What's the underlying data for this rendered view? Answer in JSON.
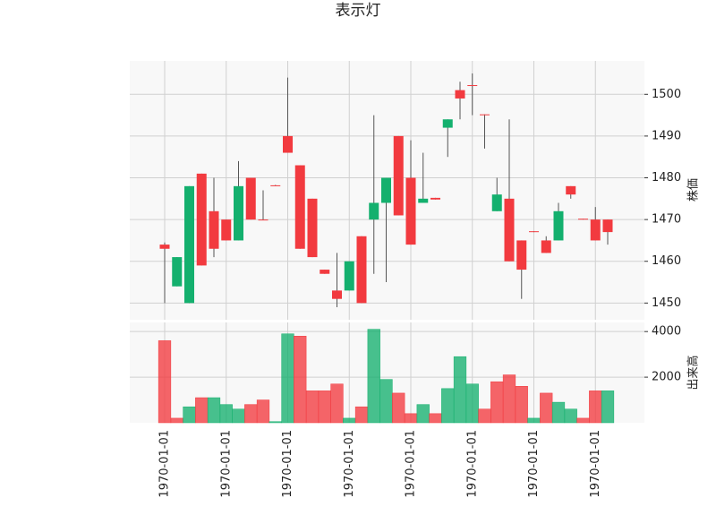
{
  "chart_data": {
    "type": "candlestick",
    "title": "表示灯",
    "categories": [
      "1970-01-01",
      null,
      null,
      null,
      null,
      "1970-01-01",
      null,
      null,
      null,
      null,
      "1970-01-01",
      null,
      null,
      null,
      null,
      "1970-01-01",
      null,
      null,
      null,
      null,
      "1970-01-01",
      null,
      null,
      null,
      null,
      "1970-01-01",
      null,
      null,
      null,
      null,
      "1970-01-01",
      null,
      null,
      null,
      null,
      "1970-01-01",
      null
    ],
    "open": [
      1464,
      1454,
      1450,
      1481,
      1472,
      1470,
      1465,
      1480,
      1470,
      1478.2,
      1490,
      1483,
      1475,
      1458,
      1453,
      1453,
      1466,
      1470,
      1474,
      1490,
      1480,
      1474,
      1475.2,
      1492,
      1501,
      1502.2,
      1495.2,
      1472,
      1475,
      1465,
      1467.2,
      1465,
      1465,
      1478,
      1470.2,
      1470,
      1470
    ],
    "high": [
      1464.5,
      1461,
      1478,
      1481,
      1480,
      1470,
      1484,
      1480,
      1477,
      1478.3,
      1504,
      1483,
      1475,
      1458,
      1462,
      1460,
      1466,
      1495,
      1480,
      1490,
      1489,
      1486,
      1475.2,
      1494,
      1503,
      1505,
      1495.2,
      1480,
      1494,
      1465,
      1467.2,
      1466,
      1474,
      1478,
      1470.2,
      1473,
      1470
    ],
    "low": [
      1450,
      1454,
      1450,
      1459,
      1461,
      1465,
      1465,
      1470,
      1469.8,
      1478,
      1486,
      1463,
      1461,
      1457,
      1449,
      1453,
      1450,
      1457,
      1455,
      1471,
      1464,
      1474,
      1474.8,
      1485,
      1494,
      1495,
      1487,
      1472,
      1460,
      1451,
      1467,
      1462,
      1465,
      1475,
      1470,
      1465,
      1464
    ],
    "close": [
      1463,
      1461,
      1478,
      1459,
      1463,
      1465,
      1478,
      1470,
      1469.8,
      1478,
      1486,
      1463,
      1461,
      1457,
      1451,
      1460,
      1450,
      1474,
      1480,
      1471,
      1464,
      1475,
      1474.8,
      1494,
      1499,
      1502,
      1495,
      1476,
      1460,
      1458,
      1467,
      1462,
      1472,
      1476,
      1470,
      1465,
      1467
    ],
    "volume": [
      3600,
      200,
      700,
      1100,
      1100,
      800,
      600,
      800,
      1000,
      50,
      3900,
      3800,
      1400,
      1400,
      1700,
      200,
      700,
      4100,
      1900,
      1300,
      400,
      800,
      400,
      1500,
      2900,
      1700,
      600,
      1800,
      2100,
      1600,
      200,
      1300,
      900,
      600,
      200,
      1400,
      1400
    ],
    "up_color": "#14b06e",
    "down_color": "#f23a3f",
    "ylabel": "株価",
    "ylim": [
      1446,
      1508
    ],
    "yticks": [
      1450,
      1460,
      1470,
      1480,
      1490,
      1500
    ],
    "y2label": "出来高",
    "y2lim": [
      0,
      4400
    ],
    "y2ticks": [
      2000,
      4000
    ],
    "grid": true
  }
}
